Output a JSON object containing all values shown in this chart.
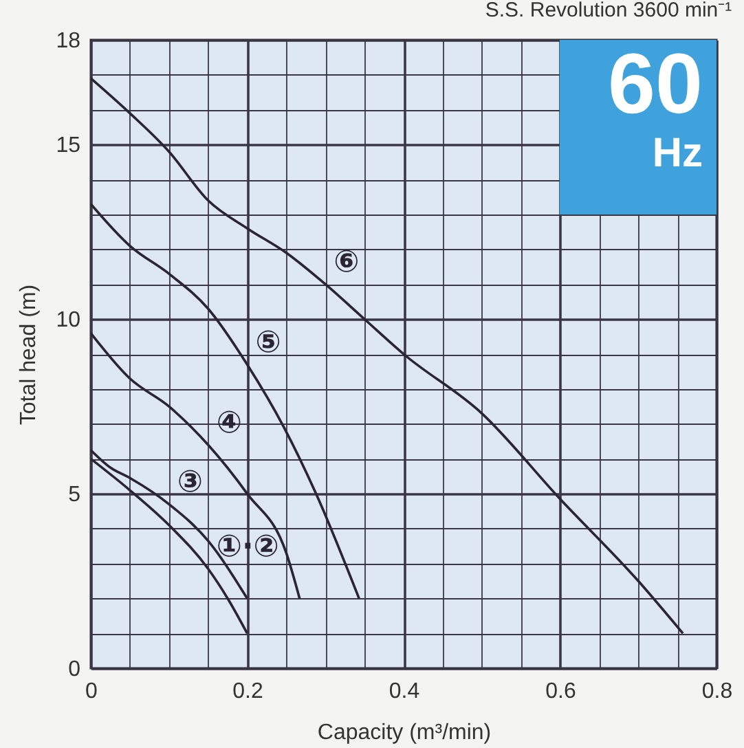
{
  "chart_data": {
    "type": "line",
    "title": "S.S. Revolution 3600 min⁻¹",
    "xlabel": "Capacity (m³/min)",
    "ylabel": "Total head (m)",
    "xlim": [
      0,
      0.8
    ],
    "ylim": [
      0,
      18
    ],
    "xticks": [
      0,
      0.2,
      0.4,
      0.6,
      0.8
    ],
    "yticks": [
      0,
      5,
      10,
      15,
      18
    ],
    "grid": true,
    "marker": "none",
    "line_style": "solid",
    "series": [
      {
        "name": "①·②",
        "color": "#2b2533",
        "x": [
          0,
          0.05,
          0.1,
          0.15,
          0.175,
          0.2
        ],
        "values": [
          6.0,
          5.1,
          4.1,
          2.85,
          2.0,
          1.0
        ]
      },
      {
        "name": "③",
        "color": "#2b2533",
        "x": [
          0,
          0.025,
          0.05,
          0.1,
          0.15,
          0.2
        ],
        "values": [
          6.25,
          5.75,
          5.45,
          4.7,
          3.65,
          2.0
        ]
      },
      {
        "name": "④",
        "color": "#2b2533",
        "x": [
          0,
          0.05,
          0.1,
          0.15,
          0.2,
          0.25,
          0.267
        ],
        "values": [
          9.6,
          8.3,
          7.5,
          6.4,
          5.0,
          3.3,
          2.0
        ]
      },
      {
        "name": "⑤",
        "color": "#2b2533",
        "x": [
          0,
          0.05,
          0.1,
          0.15,
          0.2,
          0.247,
          0.288,
          0.343
        ],
        "values": [
          13.3,
          12.1,
          11.3,
          10.3,
          8.7,
          6.9,
          5.0,
          2.0
        ]
      },
      {
        "name": "⑥",
        "color": "#2b2533",
        "x": [
          0,
          0.05,
          0.1,
          0.15,
          0.2,
          0.25,
          0.3,
          0.35,
          0.4,
          0.5,
          0.6,
          0.7,
          0.757
        ],
        "values": [
          16.9,
          15.9,
          14.8,
          13.4,
          12.6,
          11.9,
          11.0,
          10.0,
          9.0,
          7.3,
          4.85,
          2.5,
          1.0
        ]
      }
    ],
    "annotations": [
      "60",
      "Hz"
    ]
  }
}
